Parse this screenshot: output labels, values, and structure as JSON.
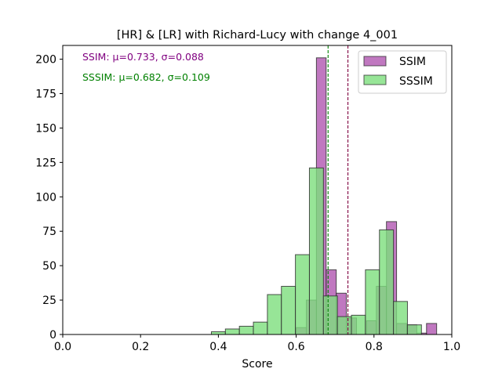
{
  "chart_data": {
    "type": "bar",
    "title": "[HR] & [LR] with Richard-Lucy with change 4_001",
    "xlabel": "Score",
    "ylabel": "",
    "xlim": [
      0.0,
      1.0
    ],
    "ylim": [
      0,
      210
    ],
    "xticks": [
      "0.0",
      "0.2",
      "0.4",
      "0.6",
      "0.8",
      "1.0"
    ],
    "yticks": [
      "0",
      "25",
      "50",
      "75",
      "100",
      "125",
      "150",
      "175",
      "200"
    ],
    "legend_position": "top-right",
    "annotations": [
      {
        "text": "SSIM: μ=0.733, σ=0.088",
        "color": "#800080"
      },
      {
        "text": "SSSIM: μ=0.682, σ=0.109",
        "color": "#008000"
      }
    ],
    "series": [
      {
        "name": "SSIM",
        "face_color": "#a53ea5",
        "alpha": 0.7,
        "mean": 0.733,
        "mean_line_color": "#800040",
        "bins": [
          {
            "x0": 0.6,
            "x1": 0.626,
            "count": 5
          },
          {
            "x0": 0.626,
            "x1": 0.652,
            "count": 25
          },
          {
            "x0": 0.652,
            "x1": 0.677,
            "count": 201
          },
          {
            "x0": 0.677,
            "x1": 0.703,
            "count": 47
          },
          {
            "x0": 0.703,
            "x1": 0.729,
            "count": 30
          },
          {
            "x0": 0.729,
            "x1": 0.755,
            "count": 12
          },
          {
            "x0": 0.755,
            "x1": 0.781,
            "count": 0
          },
          {
            "x0": 0.781,
            "x1": 0.806,
            "count": 10
          },
          {
            "x0": 0.806,
            "x1": 0.832,
            "count": 35
          },
          {
            "x0": 0.832,
            "x1": 0.858,
            "count": 82
          },
          {
            "x0": 0.858,
            "x1": 0.884,
            "count": 8
          },
          {
            "x0": 0.884,
            "x1": 0.91,
            "count": 7
          },
          {
            "x0": 0.91,
            "x1": 0.935,
            "count": 1
          },
          {
            "x0": 0.935,
            "x1": 0.961,
            "count": 8
          }
        ]
      },
      {
        "name": "SSSIM",
        "face_color": "#7ddf7d",
        "alpha": 0.8,
        "mean": 0.682,
        "mean_line_color": "#008000",
        "bins": [
          {
            "x0": 0.382,
            "x1": 0.418,
            "count": 2
          },
          {
            "x0": 0.418,
            "x1": 0.454,
            "count": 4
          },
          {
            "x0": 0.454,
            "x1": 0.49,
            "count": 6
          },
          {
            "x0": 0.49,
            "x1": 0.526,
            "count": 9
          },
          {
            "x0": 0.526,
            "x1": 0.562,
            "count": 29
          },
          {
            "x0": 0.562,
            "x1": 0.598,
            "count": 35
          },
          {
            "x0": 0.598,
            "x1": 0.634,
            "count": 58
          },
          {
            "x0": 0.634,
            "x1": 0.67,
            "count": 121
          },
          {
            "x0": 0.67,
            "x1": 0.706,
            "count": 28
          },
          {
            "x0": 0.706,
            "x1": 0.742,
            "count": 13
          },
          {
            "x0": 0.742,
            "x1": 0.778,
            "count": 14
          },
          {
            "x0": 0.778,
            "x1": 0.814,
            "count": 47
          },
          {
            "x0": 0.814,
            "x1": 0.85,
            "count": 76
          },
          {
            "x0": 0.85,
            "x1": 0.886,
            "count": 24
          },
          {
            "x0": 0.886,
            "x1": 0.922,
            "count": 7
          }
        ]
      }
    ]
  }
}
